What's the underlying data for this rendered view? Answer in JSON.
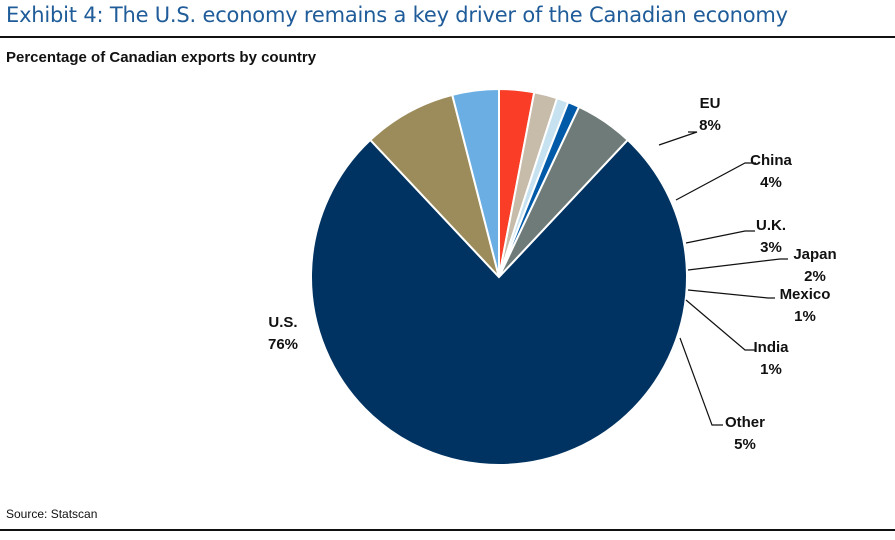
{
  "header": {
    "exhibit_title": "Exhibit 4: The U.S. economy remains a key driver of the Canadian economy"
  },
  "chart_subtitle": "Percentage of Canadian exports by country",
  "source": "Source: Statscan",
  "chart_data": {
    "type": "pie",
    "title": "Percentage of Canadian exports by country",
    "slices": [
      {
        "label": "U.S.",
        "value": 76,
        "value_label": "76%",
        "color": "#003361"
      },
      {
        "label": "EU",
        "value": 8,
        "value_label": "8%",
        "color": "#9c8c5b"
      },
      {
        "label": "China",
        "value": 4,
        "value_label": "4%",
        "color": "#6aaee3"
      },
      {
        "label": "U.K.",
        "value": 3,
        "value_label": "3%",
        "color": "#fa3d26"
      },
      {
        "label": "Japan",
        "value": 2,
        "value_label": "2%",
        "color": "#c7bbaa"
      },
      {
        "label": "Mexico",
        "value": 1,
        "value_label": "1%",
        "color": "#c6e1ef"
      },
      {
        "label": "India",
        "value": 1,
        "value_label": "1%",
        "color": "#005aa8"
      },
      {
        "label": "Other",
        "value": 5,
        "value_label": "5%",
        "color": "#6f7b78"
      }
    ]
  }
}
